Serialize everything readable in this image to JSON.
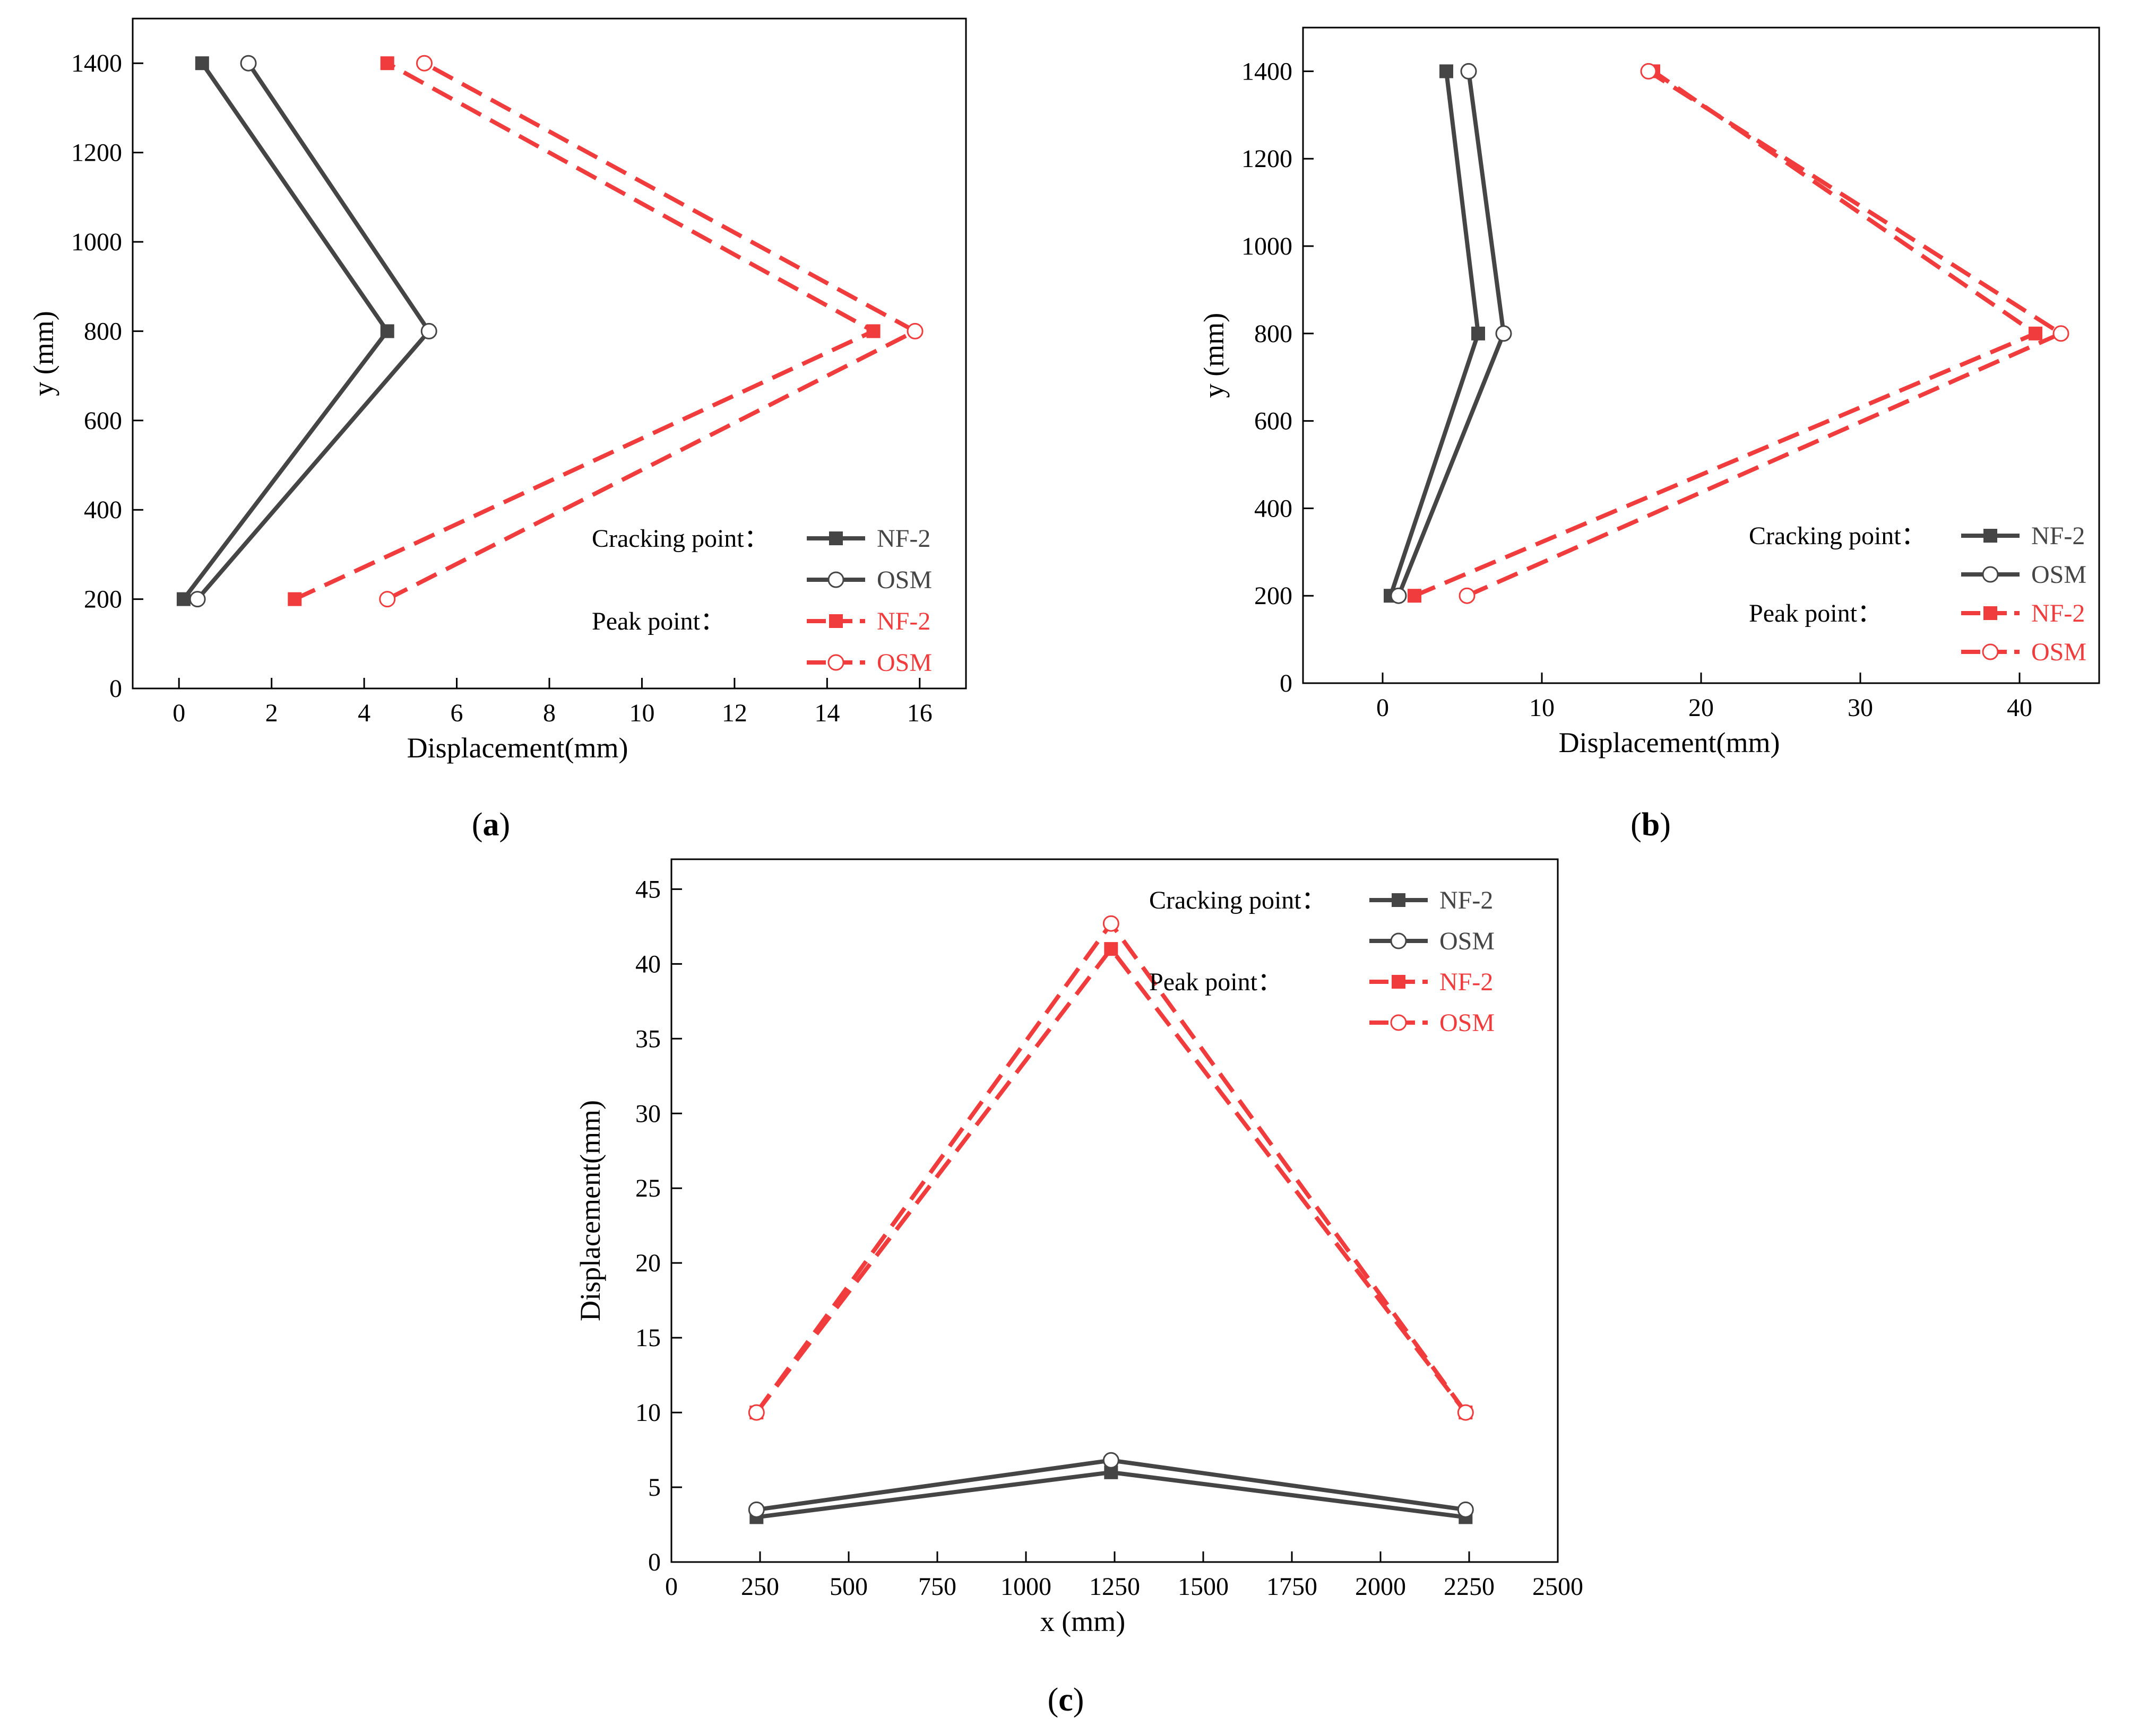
{
  "colors": {
    "cracking": "#454545",
    "peak": "#f03c3c",
    "axis": "#000000"
  },
  "chart_data": [
    {
      "type": "line",
      "panel_label": "(a)",
      "panel_letter": "a",
      "xlabel": "Displacement(mm)",
      "ylabel": "y (mm)",
      "xlim": [
        -1,
        17
      ],
      "ylim": [
        0,
        1500
      ],
      "xticks": [
        0,
        2,
        4,
        6,
        8,
        10,
        12,
        14,
        16
      ],
      "yticks": [
        0,
        200,
        400,
        600,
        800,
        1000,
        1200,
        1400
      ],
      "legend_position": "bottom-right",
      "legend_group_labels": [
        "Cracking point：",
        "Peak point："
      ],
      "series": [
        {
          "group": "cracking",
          "name": "NF-2",
          "marker": "square-filled",
          "line": "solid",
          "x": [
            0.1,
            4.5,
            0.5
          ],
          "y": [
            200,
            800,
            1400
          ]
        },
        {
          "group": "cracking",
          "name": "OSM",
          "marker": "circle-open",
          "line": "solid",
          "x": [
            0.4,
            5.4,
            1.5
          ],
          "y": [
            200,
            800,
            1400
          ]
        },
        {
          "group": "peak",
          "name": "NF-2",
          "marker": "square-filled",
          "line": "dashed",
          "x": [
            2.5,
            15.0,
            4.5
          ],
          "y": [
            200,
            800,
            1400
          ]
        },
        {
          "group": "peak",
          "name": "OSM",
          "marker": "circle-open",
          "line": "dashed",
          "x": [
            4.5,
            15.9,
            5.3
          ],
          "y": [
            200,
            800,
            1400
          ]
        }
      ]
    },
    {
      "type": "line",
      "panel_label": "(b)",
      "panel_letter": "b",
      "xlabel": "Displacement(mm)",
      "ylabel": "y (mm)",
      "xlim": [
        -5,
        45
      ],
      "ylim": [
        0,
        1500
      ],
      "xticks": [
        0,
        10,
        20,
        30,
        40
      ],
      "yticks": [
        0,
        200,
        400,
        600,
        800,
        1000,
        1200,
        1400
      ],
      "legend_position": "bottom-right",
      "legend_group_labels": [
        "Cracking point：",
        "Peak point："
      ],
      "series": [
        {
          "group": "cracking",
          "name": "NF-2",
          "marker": "square-filled",
          "line": "solid",
          "x": [
            0.5,
            6.0,
            4.0
          ],
          "y": [
            200,
            800,
            1400
          ]
        },
        {
          "group": "cracking",
          "name": "OSM",
          "marker": "circle-open",
          "line": "solid",
          "x": [
            1.0,
            7.6,
            5.4
          ],
          "y": [
            200,
            800,
            1400
          ]
        },
        {
          "group": "peak",
          "name": "NF-2",
          "marker": "square-filled",
          "line": "dashed",
          "x": [
            2.0,
            41.0,
            17.0
          ],
          "y": [
            200,
            800,
            1400
          ]
        },
        {
          "group": "peak",
          "name": "OSM",
          "marker": "circle-open",
          "line": "dashed",
          "x": [
            5.3,
            42.6,
            16.7
          ],
          "y": [
            200,
            800,
            1400
          ]
        }
      ]
    },
    {
      "type": "line",
      "panel_label": "(c)",
      "panel_letter": "c",
      "xlabel": "x (mm)",
      "ylabel": "Displacement(mm)",
      "xlim": [
        0,
        2500
      ],
      "ylim": [
        0,
        47
      ],
      "xticks": [
        0,
        250,
        500,
        750,
        1000,
        1250,
        1500,
        1750,
        2000,
        2250,
        2500
      ],
      "yticks": [
        0,
        5,
        10,
        15,
        20,
        25,
        30,
        35,
        40,
        45
      ],
      "legend_position": "top-right",
      "legend_group_labels": [
        "Cracking point：",
        "Peak point："
      ],
      "series": [
        {
          "group": "cracking",
          "name": "NF-2",
          "marker": "square-filled",
          "line": "solid",
          "x": [
            240,
            1240,
            2240
          ],
          "y": [
            3.0,
            6.0,
            3.0
          ]
        },
        {
          "group": "cracking",
          "name": "OSM",
          "marker": "circle-open",
          "line": "solid",
          "x": [
            240,
            1240,
            2240
          ],
          "y": [
            3.5,
            6.8,
            3.5
          ]
        },
        {
          "group": "peak",
          "name": "NF-2",
          "marker": "square-filled",
          "line": "dashed",
          "x": [
            240,
            1240,
            2240
          ],
          "y": [
            10.0,
            41.0,
            10.0
          ]
        },
        {
          "group": "peak",
          "name": "OSM",
          "marker": "circle-open",
          "line": "dashed",
          "x": [
            240,
            1240,
            2240
          ],
          "y": [
            10.0,
            42.7,
            10.0
          ]
        }
      ]
    }
  ]
}
